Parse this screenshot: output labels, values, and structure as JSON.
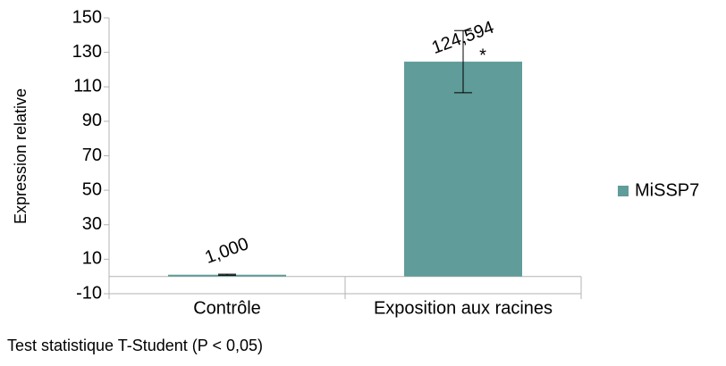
{
  "chart_data": {
    "type": "bar",
    "y_label": "Expression relative",
    "categories": [
      "Contrôle",
      "Exposition aux racines"
    ],
    "series": [
      {
        "name": "MiSSP7",
        "color": "#5f9c9a",
        "values": [
          1,
          124.594
        ],
        "value_labels": [
          "1,000",
          "124,594"
        ],
        "errors": [
          0.3,
          18
        ]
      }
    ],
    "annotation": "*",
    "footnote": "Test statistique T-Student (P < 0,05)",
    "ylim": [
      -10,
      150
    ],
    "yticks": [
      -10,
      10,
      30,
      50,
      70,
      90,
      110,
      130,
      150
    ],
    "legend": "right"
  }
}
